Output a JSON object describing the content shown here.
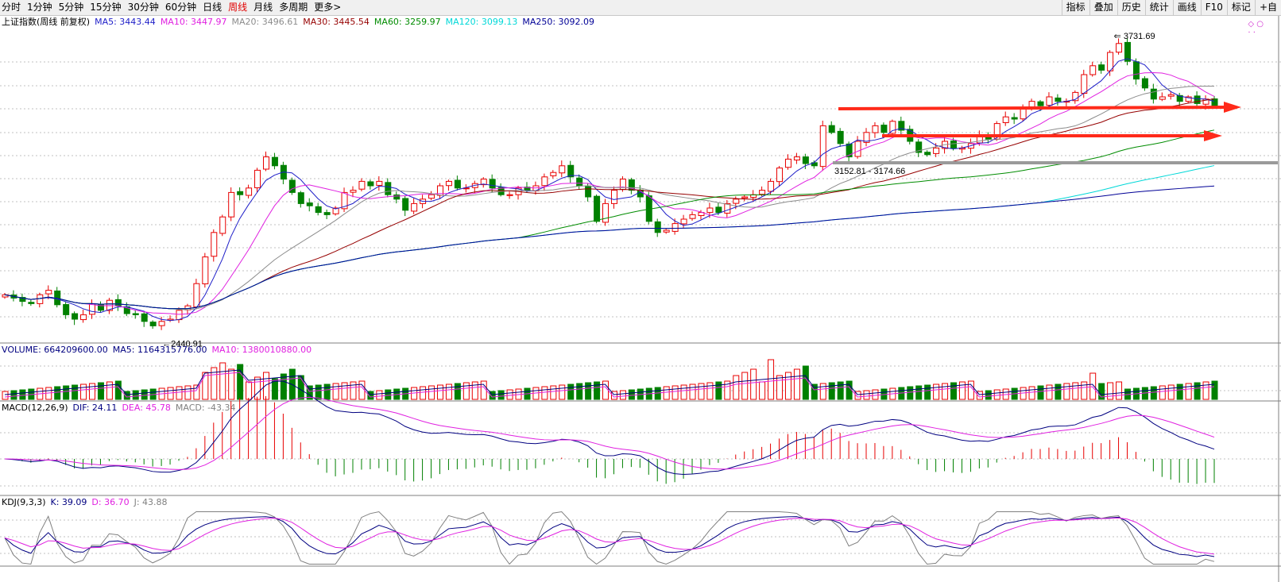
{
  "toolbar": {
    "periods": [
      "分时",
      "1分钟",
      "5分钟",
      "15分钟",
      "30分钟",
      "60分钟",
      "日线",
      "周线",
      "月线",
      "多周期",
      "更多>"
    ],
    "active_period": "周线",
    "tools": [
      "指标",
      "叠加",
      "历史",
      "统计",
      "画线",
      "F10",
      "标记",
      "+自"
    ]
  },
  "main": {
    "title": "上证指数(周线 前复权)",
    "ma": [
      {
        "label": "MA5: 3443.44",
        "color": "#1e1ec8"
      },
      {
        "label": "MA10: 3447.97",
        "color": "#e020e0"
      },
      {
        "label": "MA20: 3496.61",
        "color": "#8c8c8c"
      },
      {
        "label": "MA30: 3445.54",
        "color": "#960000"
      },
      {
        "label": "MA60: 3259.97",
        "color": "#008c00"
      },
      {
        "label": "MA120: 3099.13",
        "color": "#00d8d8"
      },
      {
        "label": "MA250: 3092.09",
        "color": "#000096"
      }
    ],
    "low_label": "2440.91",
    "high_label": "3731.69",
    "gap_label": "3152.81 - 3174.66"
  },
  "volume": {
    "items": [
      {
        "label": "VOLUME: 664209600.00",
        "color": "#000080"
      },
      {
        "label": "MA5: 1164315776.00",
        "color": "#000080"
      },
      {
        "label": "MA10: 1380010880.00",
        "color": "#e020e0"
      }
    ]
  },
  "macd": {
    "items": [
      {
        "label": "MACD(12,26,9)",
        "color": "#000000"
      },
      {
        "label": "DIF: 24.11",
        "color": "#000080"
      },
      {
        "label": "DEA: 45.78",
        "color": "#e020e0"
      },
      {
        "label": "MACD: -43.34",
        "color": "#808080"
      }
    ]
  },
  "kdj": {
    "items": [
      {
        "label": "KDJ(9,3,3)",
        "color": "#000000"
      },
      {
        "label": "K: 39.09",
        "color": "#000080"
      },
      {
        "label": "D: 36.70",
        "color": "#e020e0"
      },
      {
        "label": "J: 43.88",
        "color": "#808080"
      }
    ]
  },
  "colors": {
    "up": "#e80000",
    "down": "#008000",
    "grid": "#c0c0c0",
    "arrow": "#ff2a1a"
  },
  "chart_data": {
    "type": "candlestick",
    "y_range": [
      2380,
      3780
    ],
    "closes": [
      2590,
      2575,
      2560,
      2550,
      2590,
      2610,
      2545,
      2500,
      2480,
      2500,
      2550,
      2520,
      2565,
      2540,
      2505,
      2500,
      2470,
      2450,
      2470,
      2480,
      2520,
      2540,
      2640,
      2760,
      2870,
      2940,
      3050,
      3040,
      3070,
      3150,
      3210,
      3170,
      3110,
      3050,
      3000,
      2990,
      2960,
      2950,
      2980,
      3050,
      3060,
      3100,
      3080,
      3100,
      3040,
      3020,
      2970,
      3000,
      3020,
      3040,
      3080,
      3100,
      3070,
      3070,
      3090,
      3110,
      3070,
      3040,
      3040,
      3070,
      3060,
      3080,
      3120,
      3140,
      3170,
      3120,
      3080,
      3030,
      2920,
      3000,
      3060,
      3110,
      3060,
      3030,
      2920,
      2870,
      2880,
      2910,
      2930,
      2950,
      2960,
      2980,
      2960,
      3000,
      3020,
      3030,
      3040,
      3060,
      3100,
      3160,
      3200,
      3210,
      3180,
      3170,
      3350,
      3320,
      3270,
      3210,
      3280,
      3320,
      3350,
      3320,
      3370,
      3330,
      3280,
      3230,
      3220,
      3250,
      3280,
      3250,
      3250,
      3270,
      3310,
      3290,
      3360,
      3390,
      3380,
      3430,
      3460,
      3440,
      3480,
      3460,
      3460,
      3500,
      3580,
      3620,
      3600,
      3680,
      3720,
      3640,
      3560,
      3520,
      3470,
      3480,
      3490,
      3460,
      3480,
      3450,
      3470,
      3440
    ]
  }
}
